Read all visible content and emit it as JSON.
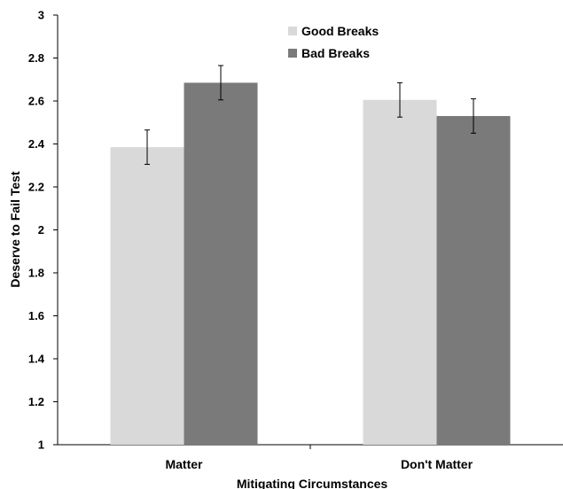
{
  "chart_data": {
    "type": "bar",
    "title": "",
    "xlabel": "Mitigating Circumstances",
    "ylabel": "Deserve to Fail Test",
    "ylim": [
      1,
      3
    ],
    "yticks": [
      1,
      1.2,
      1.4,
      1.6,
      1.8,
      2,
      2.2,
      2.4,
      2.6,
      2.8,
      3
    ],
    "ytick_labels": [
      "1",
      "1.2",
      "1.4",
      "1.6",
      "1.8",
      "2",
      "2.2",
      "2.4",
      "2.6",
      "2.8",
      "3"
    ],
    "categories": [
      "Matter",
      "Don't Matter"
    ],
    "series": [
      {
        "name": "Good Breaks",
        "color": "#d9d9d9",
        "values": [
          2.385,
          2.605
        ],
        "errors": [
          0.08,
          0.08
        ]
      },
      {
        "name": "Bad Breaks",
        "color": "#7a7a7a",
        "values": [
          2.685,
          2.53
        ],
        "errors": [
          0.08,
          0.08
        ]
      }
    ],
    "legend": "top-center",
    "grid": false
  }
}
